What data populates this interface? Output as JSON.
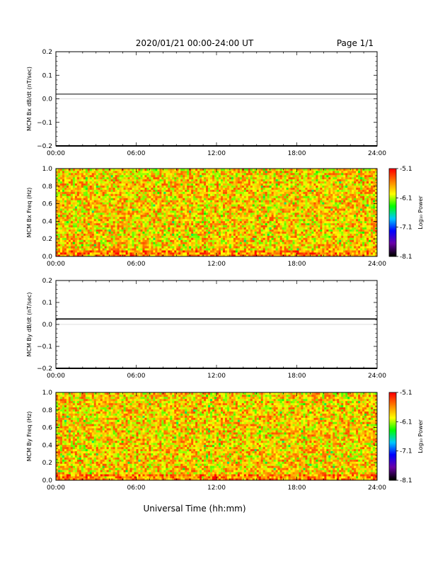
{
  "header": {
    "date_range": "2020/01/21  00:00-24:00 UT",
    "page": "Page 1/1"
  },
  "x_axis": {
    "title": "Universal Time (hh:mm)",
    "ticks": [
      "00:00",
      "06:00",
      "12:00",
      "18:00",
      "24:00"
    ],
    "range_hours": [
      0,
      24
    ]
  },
  "colorbar": {
    "title": "Log₁₀ Power",
    "ticks": [
      "-5.1",
      "-6.1",
      "-7.1",
      "-8.1"
    ],
    "range": [
      -8.1,
      -5.1
    ],
    "colors": [
      "#000000",
      "#6a00a8",
      "#0000ff",
      "#00c8ff",
      "#00ff00",
      "#ffff00",
      "#ff8000",
      "#ff0000"
    ]
  },
  "chart_data": [
    {
      "type": "line",
      "ylabel": "MCM Bx dB/dt (nT/sec)",
      "ylim": [
        -0.2,
        0.2
      ],
      "yticks": [
        "0.2",
        "0.1",
        "0.0",
        "−0.1",
        "−0.2"
      ],
      "ytick_values": [
        0.2,
        0.1,
        0.0,
        -0.1,
        -0.2
      ],
      "x": [
        0,
        24
      ],
      "y": [
        0.02,
        0.02
      ],
      "color": "#000000"
    },
    {
      "type": "heatmap",
      "ylabel": "MCM Bx Freq (Hz)",
      "ylim": [
        0.0,
        1.0
      ],
      "yticks": [
        "1.0",
        "0.8",
        "0.6",
        "0.4",
        "0.2",
        "0.0"
      ],
      "ytick_values": [
        1.0,
        0.8,
        0.6,
        0.4,
        0.2,
        0.0
      ],
      "xlim": [
        0,
        24
      ],
      "zlim": [
        -8.1,
        -5.1
      ]
    },
    {
      "type": "line",
      "ylabel": "MCM By dB/dt (nT/sec)",
      "ylim": [
        -0.2,
        0.2
      ],
      "yticks": [
        "0.2",
        "0.1",
        "0.0",
        "−0.1",
        "−0.2"
      ],
      "ytick_values": [
        0.2,
        0.1,
        0.0,
        -0.1,
        -0.2
      ],
      "x": [
        0,
        24
      ],
      "y": [
        0.025,
        0.025
      ],
      "color": "#000000"
    },
    {
      "type": "heatmap",
      "ylabel": "MCM By Freq (Hz)",
      "ylim": [
        0.0,
        1.0
      ],
      "yticks": [
        "1.0",
        "0.8",
        "0.6",
        "0.4",
        "0.2",
        "0.0"
      ],
      "ytick_values": [
        1.0,
        0.8,
        0.6,
        0.4,
        0.2,
        0.0
      ],
      "xlim": [
        0,
        24
      ],
      "zlim": [
        -8.1,
        -5.1
      ]
    }
  ]
}
